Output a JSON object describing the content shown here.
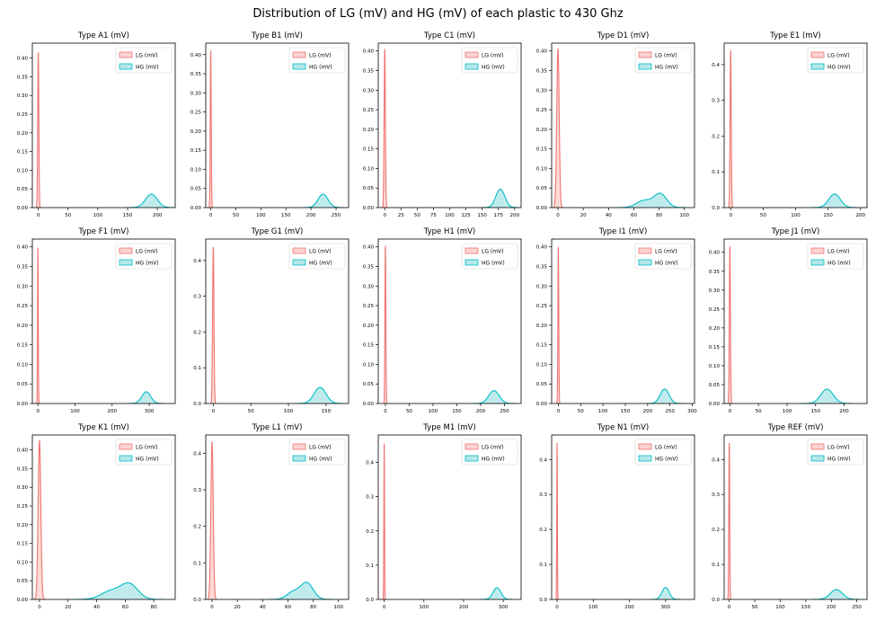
{
  "figure_title": "Distribution of LG (mV) and HG (mV) of each plastic to 430 Ghz",
  "legend_labels": [
    "LG (mV)",
    "HG (mV)"
  ],
  "colors": {
    "lg_line": "#f07470",
    "lg_fill": "#fbd3d0",
    "hg_line": "#00bcc6",
    "hg_fill": "#b5e7ea"
  },
  "chart_data": [
    {
      "type": "area",
      "title": "Type A1 (mV)",
      "xlim": [
        -10,
        230
      ],
      "ylim": [
        0,
        0.44
      ],
      "xticks": [
        0,
        50,
        100,
        150,
        200
      ],
      "yticks": [
        0,
        0.05,
        0.1,
        0.15,
        0.2,
        0.25,
        0.3,
        0.35,
        0.4
      ],
      "ytick_labels": [
        "0.00",
        "0.05",
        "0.10",
        "0.15",
        "0.20",
        "0.25",
        "0.30",
        "0.35",
        "0.40"
      ],
      "series": [
        {
          "name": "LG (mV)",
          "components": [
            [
              0,
              0.94,
              0.415
            ]
          ]
        },
        {
          "name": "HG (mV)",
          "components": [
            [
              190,
              10,
              0.036
            ]
          ]
        }
      ]
    },
    {
      "type": "area",
      "title": "Type B1 (mV)",
      "xlim": [
        -10,
        275
      ],
      "ylim": [
        0,
        0.43
      ],
      "xticks": [
        0,
        50,
        100,
        150,
        200,
        250
      ],
      "yticks": [
        0,
        0.05,
        0.1,
        0.15,
        0.2,
        0.25,
        0.3,
        0.35,
        0.4
      ],
      "ytick_labels": [
        "0.00",
        "0.05",
        "0.10",
        "0.15",
        "0.20",
        "0.25",
        "0.30",
        "0.35",
        "0.40"
      ],
      "series": [
        {
          "name": "LG (mV)",
          "components": [
            [
              0,
              0.95,
              0.41
            ]
          ]
        },
        {
          "name": "HG (mV)",
          "components": [
            [
              224,
              10,
              0.035
            ]
          ]
        }
      ]
    },
    {
      "type": "area",
      "title": "Type C1 (mV)",
      "xlim": [
        -10,
        210
      ],
      "ylim": [
        0,
        0.42
      ],
      "xticks": [
        0,
        25,
        50,
        75,
        100,
        125,
        150,
        175,
        200
      ],
      "yticks": [
        0,
        0.05,
        0.1,
        0.15,
        0.2,
        0.25,
        0.3,
        0.35,
        0.4
      ],
      "ytick_labels": [
        "0.00",
        "0.05",
        "0.10",
        "0.15",
        "0.20",
        "0.25",
        "0.30",
        "0.35",
        "0.40"
      ],
      "series": [
        {
          "name": "LG (mV)",
          "components": [
            [
              0,
              0.97,
              0.405
            ]
          ]
        },
        {
          "name": "HG (mV)",
          "components": [
            [
              178,
              7,
              0.047
            ]
          ]
        }
      ]
    },
    {
      "type": "area",
      "title": "Type D1 (mV)",
      "xlim": [
        -5,
        108
      ],
      "ylim": [
        0,
        0.42
      ],
      "xticks": [
        0,
        20,
        40,
        60,
        80,
        100
      ],
      "yticks": [
        0,
        0.05,
        0.1,
        0.15,
        0.2,
        0.25,
        0.3,
        0.35,
        0.4
      ],
      "ytick_labels": [
        "0.00",
        "0.05",
        "0.10",
        "0.15",
        "0.20",
        "0.25",
        "0.30",
        "0.35",
        "0.40"
      ],
      "series": [
        {
          "name": "LG (mV)",
          "components": [
            [
              0,
              0.96,
              0.405
            ]
          ]
        },
        {
          "name": "HG (mV)",
          "components": [
            [
              81,
              5,
              0.035
            ],
            [
              68,
              6,
              0.018
            ]
          ]
        }
      ]
    },
    {
      "type": "area",
      "title": "Type E1 (mV)",
      "xlim": [
        -10,
        210
      ],
      "ylim": [
        0,
        0.46
      ],
      "xticks": [
        0,
        50,
        100,
        150,
        200
      ],
      "yticks": [
        0,
        0.1,
        0.2,
        0.3,
        0.4
      ],
      "ytick_labels": [
        "0.0",
        "0.1",
        "0.2",
        "0.3",
        "0.4"
      ],
      "series": [
        {
          "name": "LG (mV)",
          "components": [
            [
              0,
              0.9,
              0.44
            ]
          ]
        },
        {
          "name": "HG (mV)",
          "components": [
            [
              160,
              9,
              0.038
            ]
          ]
        }
      ]
    },
    {
      "type": "area",
      "title": "Type F1 (mV)",
      "xlim": [
        -15,
        370
      ],
      "ylim": [
        0,
        0.42
      ],
      "xticks": [
        0,
        100,
        200,
        300
      ],
      "yticks": [
        0,
        0.05,
        0.1,
        0.15,
        0.2,
        0.25,
        0.3,
        0.35,
        0.4
      ],
      "ytick_labels": [
        "0.00",
        "0.05",
        "0.10",
        "0.15",
        "0.20",
        "0.25",
        "0.30",
        "0.35",
        "0.40"
      ],
      "series": [
        {
          "name": "LG (mV)",
          "components": [
            [
              0,
              0.99,
              0.398
            ]
          ]
        },
        {
          "name": "HG (mV)",
          "components": [
            [
              292,
              12,
              0.03
            ]
          ]
        }
      ]
    },
    {
      "type": "area",
      "title": "Type G1 (mV)",
      "xlim": [
        -10,
        180
      ],
      "ylim": [
        0,
        0.46
      ],
      "xticks": [
        0,
        50,
        100,
        150
      ],
      "yticks": [
        0,
        0.1,
        0.2,
        0.3,
        0.4
      ],
      "ytick_labels": [
        "0.0",
        "0.1",
        "0.2",
        "0.3",
        "0.4"
      ],
      "series": [
        {
          "name": "LG (mV)",
          "components": [
            [
              0,
              0.91,
              0.437
            ]
          ]
        },
        {
          "name": "HG (mV)",
          "components": [
            [
              142,
              8,
              0.045
            ]
          ]
        }
      ]
    },
    {
      "type": "area",
      "title": "Type H1 (mV)",
      "xlim": [
        -15,
        285
      ],
      "ylim": [
        0,
        0.42
      ],
      "xticks": [
        0,
        50,
        100,
        150,
        200,
        250
      ],
      "yticks": [
        0,
        0.05,
        0.1,
        0.15,
        0.2,
        0.25,
        0.3,
        0.35,
        0.4
      ],
      "ytick_labels": [
        "0.00",
        "0.05",
        "0.10",
        "0.15",
        "0.20",
        "0.25",
        "0.30",
        "0.35",
        "0.40"
      ],
      "series": [
        {
          "name": "LG (mV)",
          "components": [
            [
              0,
              0.98,
              0.403
            ]
          ]
        },
        {
          "name": "HG (mV)",
          "components": [
            [
              228,
              11,
              0.033
            ]
          ]
        }
      ]
    },
    {
      "type": "area",
      "title": "Type I1 (mV)",
      "xlim": [
        -15,
        305
      ],
      "ylim": [
        0,
        0.42
      ],
      "xticks": [
        0,
        50,
        100,
        150,
        200,
        250,
        300
      ],
      "yticks": [
        0,
        0.05,
        0.1,
        0.15,
        0.2,
        0.25,
        0.3,
        0.35,
        0.4
      ],
      "ytick_labels": [
        "0.00",
        "0.05",
        "0.10",
        "0.15",
        "0.20",
        "0.25",
        "0.30",
        "0.35",
        "0.40"
      ],
      "series": [
        {
          "name": "LG (mV)",
          "components": [
            [
              0,
              0.99,
              0.4
            ]
          ]
        },
        {
          "name": "HG (mV)",
          "components": [
            [
              238,
              10,
              0.037
            ]
          ]
        }
      ]
    },
    {
      "type": "area",
      "title": "Type J1 (mV)",
      "xlim": [
        -10,
        240
      ],
      "ylim": [
        0,
        0.435
      ],
      "xticks": [
        0,
        50,
        100,
        150,
        200
      ],
      "yticks": [
        0,
        0.05,
        0.1,
        0.15,
        0.2,
        0.25,
        0.3,
        0.35,
        0.4
      ],
      "ytick_labels": [
        "0.00",
        "0.05",
        "0.10",
        "0.15",
        "0.20",
        "0.25",
        "0.30",
        "0.35",
        "0.40"
      ],
      "series": [
        {
          "name": "LG (mV)",
          "components": [
            [
              0,
              0.96,
              0.415
            ]
          ]
        },
        {
          "name": "HG (mV)",
          "components": [
            [
              170,
              11,
              0.038
            ]
          ]
        }
      ]
    },
    {
      "type": "area",
      "title": "Type K1 (mV)",
      "xlim": [
        -5,
        95
      ],
      "ylim": [
        0,
        0.44
      ],
      "xticks": [
        0,
        20,
        40,
        60,
        80
      ],
      "yticks": [
        0,
        0.05,
        0.1,
        0.15,
        0.2,
        0.25,
        0.3,
        0.35,
        0.4
      ],
      "ytick_labels": [
        "0.00",
        "0.05",
        "0.10",
        "0.15",
        "0.20",
        "0.25",
        "0.30",
        "0.35",
        "0.40"
      ],
      "series": [
        {
          "name": "LG (mV)",
          "components": [
            [
              0,
              0.94,
              0.425
            ]
          ]
        },
        {
          "name": "HG (mV)",
          "components": [
            [
              63,
              6,
              0.04
            ],
            [
              50,
              7,
              0.022
            ]
          ]
        }
      ]
    },
    {
      "type": "area",
      "title": "Type L1 (mV)",
      "xlim": [
        -5,
        108
      ],
      "ylim": [
        0,
        0.45
      ],
      "xticks": [
        0,
        20,
        40,
        60,
        80,
        100
      ],
      "yticks": [
        0,
        0.1,
        0.2,
        0.3,
        0.4
      ],
      "ytick_labels": [
        "0.0",
        "0.1",
        "0.2",
        "0.3",
        "0.4"
      ],
      "series": [
        {
          "name": "LG (mV)",
          "components": [
            [
              0,
              0.93,
              0.43
            ]
          ]
        },
        {
          "name": "HG (mV)",
          "components": [
            [
              75,
              5,
              0.045
            ],
            [
              64,
              5,
              0.02
            ]
          ]
        }
      ]
    },
    {
      "type": "area",
      "title": "Type M1 (mV)",
      "xlim": [
        -15,
        345
      ],
      "ylim": [
        0,
        0.48
      ],
      "xticks": [
        0,
        100,
        200,
        300
      ],
      "yticks": [
        0,
        0.1,
        0.2,
        0.3,
        0.4
      ],
      "ytick_labels": [
        "0.0",
        "0.1",
        "0.2",
        "0.3",
        "0.4"
      ],
      "series": [
        {
          "name": "LG (mV)",
          "components": [
            [
              0,
              0.87,
              0.455
            ]
          ]
        },
        {
          "name": "HG (mV)",
          "components": [
            [
              284,
              10,
              0.034
            ]
          ]
        }
      ]
    },
    {
      "type": "area",
      "title": "Type N1 (mV)",
      "xlim": [
        -15,
        380
      ],
      "ylim": [
        0,
        0.47
      ],
      "xticks": [
        0,
        100,
        200,
        300
      ],
      "yticks": [
        0,
        0.1,
        0.2,
        0.3,
        0.4
      ],
      "ytick_labels": [
        "0.0",
        "0.1",
        "0.2",
        "0.3",
        "0.4"
      ],
      "series": [
        {
          "name": "LG (mV)",
          "components": [
            [
              0,
              0.88,
              0.447
            ]
          ]
        },
        {
          "name": "HG (mV)",
          "components": [
            [
              300,
              10,
              0.034
            ]
          ]
        }
      ]
    },
    {
      "type": "area",
      "title": "Type REF (mV)",
      "xlim": [
        -10,
        270
      ],
      "ylim": [
        0,
        0.47
      ],
      "xticks": [
        0,
        50,
        100,
        150,
        200,
        250
      ],
      "yticks": [
        0,
        0.1,
        0.2,
        0.3,
        0.4
      ],
      "ytick_labels": [
        "0.0",
        "0.1",
        "0.2",
        "0.3",
        "0.4"
      ],
      "series": [
        {
          "name": "LG (mV)",
          "components": [
            [
              0,
              0.88,
              0.447
            ]
          ]
        },
        {
          "name": "HG (mV)",
          "components": [
            [
              210,
              12,
              0.028
            ]
          ]
        }
      ]
    }
  ]
}
